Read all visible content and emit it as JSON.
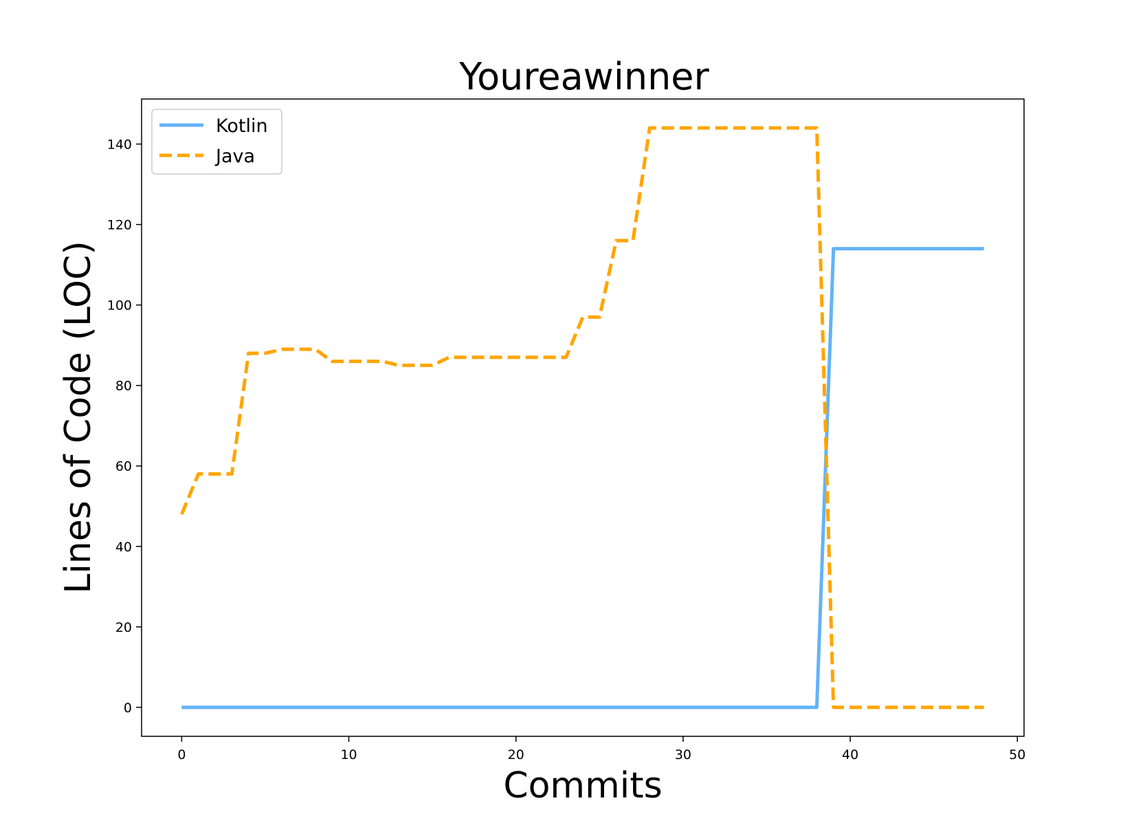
{
  "chart_data": {
    "type": "line",
    "title": "Youreawinner",
    "xlabel": "Commits",
    "ylabel": "Lines of Code (LOC)",
    "xlim": [
      -2.4,
      50.4
    ],
    "ylim": [
      -7.2,
      151.2
    ],
    "xticks": [
      0,
      10,
      20,
      30,
      40,
      50
    ],
    "yticks": [
      0,
      20,
      40,
      60,
      80,
      100,
      120,
      140
    ],
    "grid": false,
    "legend": "top-left",
    "series": [
      {
        "name": "Kotlin",
        "color": "#63b3f7",
        "style": "solid",
        "x": [
          0,
          1,
          2,
          3,
          4,
          5,
          6,
          7,
          8,
          9,
          10,
          11,
          12,
          13,
          14,
          15,
          16,
          17,
          18,
          19,
          20,
          21,
          22,
          23,
          24,
          25,
          26,
          27,
          28,
          29,
          30,
          31,
          32,
          33,
          34,
          35,
          36,
          37,
          38,
          39,
          40,
          41,
          42,
          43,
          44,
          45,
          46,
          47,
          48
        ],
        "y": [
          0,
          0,
          0,
          0,
          0,
          0,
          0,
          0,
          0,
          0,
          0,
          0,
          0,
          0,
          0,
          0,
          0,
          0,
          0,
          0,
          0,
          0,
          0,
          0,
          0,
          0,
          0,
          0,
          0,
          0,
          0,
          0,
          0,
          0,
          0,
          0,
          0,
          0,
          0,
          114,
          114,
          114,
          114,
          114,
          114,
          114,
          114,
          114,
          114
        ]
      },
      {
        "name": "Java",
        "color": "#ffa500",
        "style": "dashed",
        "x": [
          0,
          1,
          2,
          3,
          4,
          5,
          6,
          7,
          8,
          9,
          10,
          11,
          12,
          13,
          14,
          15,
          16,
          17,
          18,
          19,
          20,
          21,
          22,
          23,
          24,
          25,
          26,
          27,
          28,
          29,
          30,
          31,
          32,
          33,
          34,
          35,
          36,
          37,
          38,
          39,
          40,
          41,
          42,
          43,
          44,
          45,
          46,
          47,
          48
        ],
        "y": [
          48,
          58,
          58,
          58,
          88,
          88,
          89,
          89,
          89,
          86,
          86,
          86,
          86,
          85,
          85,
          85,
          87,
          87,
          87,
          87,
          87,
          87,
          87,
          87,
          97,
          97,
          116,
          116,
          144,
          144,
          144,
          144,
          144,
          144,
          144,
          144,
          144,
          144,
          144,
          0,
          0,
          0,
          0,
          0,
          0,
          0,
          0,
          0,
          0
        ]
      }
    ]
  }
}
